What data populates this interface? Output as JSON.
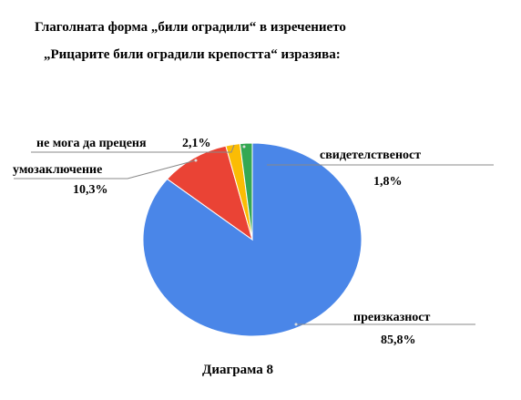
{
  "chart_data": {
    "type": "pie",
    "title_line1": "Глаголната форма „били оградили“ в изречението",
    "title_line2": "„Рицарите били  оградили крепостта“ изразява:",
    "slices": [
      {
        "label": "преизказност",
        "value_label": "85,8%",
        "value": 85.8,
        "color": "#4A86E8"
      },
      {
        "label": "умозаключение",
        "value_label": "10,3%",
        "value": 10.3,
        "color": "#EA4335"
      },
      {
        "label": "не мога да преценя",
        "value_label": "2,1%",
        "value": 2.1,
        "color": "#FBBC04"
      },
      {
        "label": "свидетелственост",
        "value_label": "1,8%",
        "value": 1.8,
        "color": "#34A853"
      }
    ],
    "caption": "Диаграма 8"
  }
}
